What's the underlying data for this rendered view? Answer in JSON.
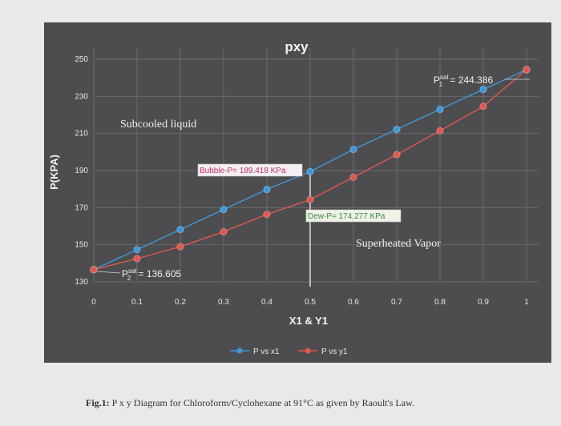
{
  "chart_data": {
    "type": "line",
    "title": "pxy",
    "xlabel": "X1 & Y1",
    "ylabel": "P(KPA)",
    "xlim": [
      0,
      1
    ],
    "ylim": [
      130,
      250
    ],
    "x_ticks": [
      "0",
      "0.1",
      "0.2",
      "0.3",
      "0.4",
      "0.5",
      "0.6",
      "0.7",
      "0.8",
      "0.9",
      "1"
    ],
    "y_ticks": [
      "130",
      "150",
      "170",
      "190",
      "210",
      "230",
      "250"
    ],
    "grid": true,
    "legend_position": "bottom",
    "series": [
      {
        "name": "P vs x1",
        "color": "#3f97d8",
        "x": [
          0,
          0.1,
          0.2,
          0.3,
          0.4,
          0.5,
          0.6,
          0.7,
          0.8,
          0.9,
          1.0
        ],
        "y": [
          136.605,
          147.4,
          158.2,
          169.0,
          179.8,
          189.418,
          201.4,
          212.2,
          223.0,
          233.7,
          244.386
        ]
      },
      {
        "name": "P vs y1",
        "color": "#e0574f",
        "x": [
          0,
          0.1,
          0.2,
          0.3,
          0.4,
          0.5,
          0.6,
          0.7,
          0.8,
          0.9,
          1.0
        ],
        "y": [
          136.605,
          142.5,
          149.0,
          157.0,
          166.4,
          174.277,
          186.4,
          198.6,
          211.4,
          224.6,
          244.386
        ]
      }
    ],
    "annotations": {
      "region_liquid": "Subcooled liquid",
      "region_vapor": "Superheated Vapor",
      "bubble": "Bubble-P= 189.418 KPa",
      "dew": "Dew-P= 174.277 KPa",
      "psat1_prefix": "P",
      "psat1_sup": "sat",
      "psat1_sub": "1",
      "psat1_value": " = 244.386",
      "psat2_prefix": "P",
      "psat2_sup": "sat",
      "psat2_sub": "2",
      "psat2_value": " = 136.605"
    }
  },
  "caption": {
    "label": "Fig.1:",
    "text": " P x y Diagram for Chloroform/Cyclohexane at 91°C as given by Raoult's Law."
  }
}
